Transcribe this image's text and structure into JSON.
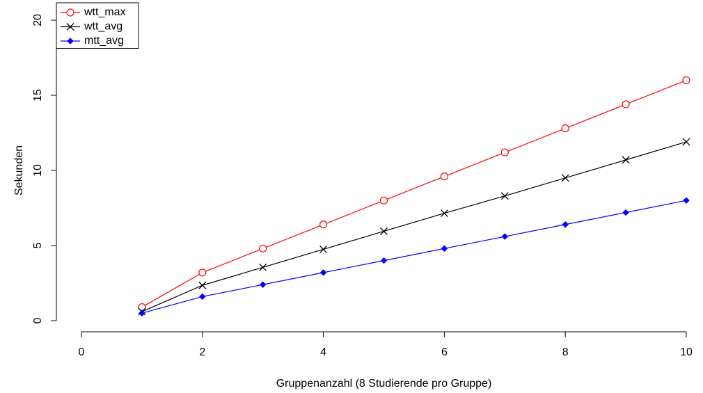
{
  "chart_data": {
    "type": "line",
    "title": "",
    "xlabel": "Gruppenanzahl (8 Studierende pro Gruppe)",
    "ylabel": "Sekunden",
    "xlim": [
      0,
      10
    ],
    "ylim": [
      0,
      20
    ],
    "x_ticks": [
      "0",
      "2",
      "4",
      "6",
      "8",
      "10"
    ],
    "y_ticks": [
      "0",
      "5",
      "10",
      "15",
      "20"
    ],
    "grid": false,
    "legend_position": "top-left",
    "x": [
      1,
      2,
      3,
      4,
      5,
      6,
      7,
      8,
      9,
      10
    ],
    "series": [
      {
        "name": "wtt_max",
        "color": "#ff0000",
        "marker": "open-circle",
        "values": [
          0.9,
          3.2,
          4.8,
          6.4,
          8.0,
          9.6,
          11.2,
          12.8,
          14.4,
          16.0
        ]
      },
      {
        "name": "wtt_avg",
        "color": "#000000",
        "marker": "cross",
        "values": [
          0.6,
          2.35,
          3.55,
          4.75,
          5.95,
          7.15,
          8.3,
          9.5,
          10.7,
          11.9
        ]
      },
      {
        "name": "mtt_avg",
        "color": "#0000ff",
        "marker": "filled-diamond",
        "values": [
          0.5,
          1.6,
          2.4,
          3.2,
          4.0,
          4.8,
          5.6,
          6.4,
          7.2,
          8.0
        ]
      }
    ]
  }
}
